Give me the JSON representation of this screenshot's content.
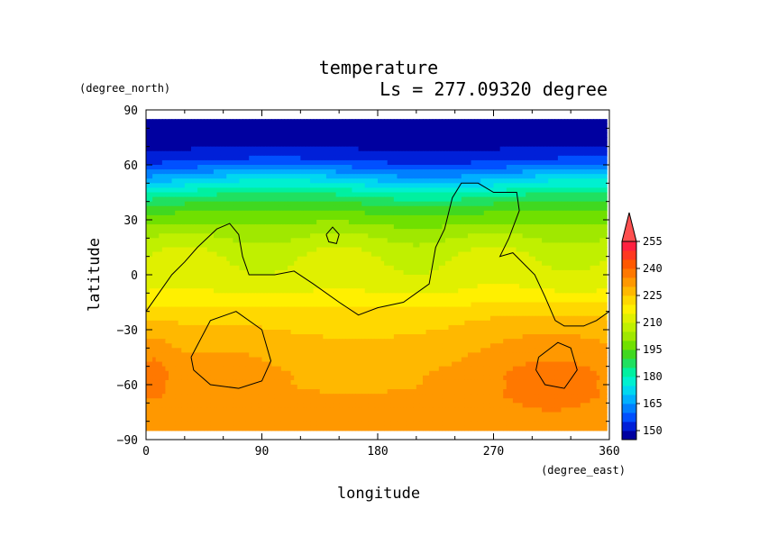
{
  "chart_data": {
    "type": "heatmap",
    "title": "temperature",
    "subtitle": "Ls = 277.09320 degree",
    "xlabel": "longitude",
    "ylabel": "latitude",
    "xunit": "(degree_east)",
    "yunit": "(degree_north)",
    "xlim": [
      0,
      360
    ],
    "ylim": [
      -90,
      90
    ],
    "x_ticks": [
      "0",
      "90",
      "180",
      "270",
      "360"
    ],
    "y_ticks": [
      "90",
      "60",
      "30",
      "0",
      "−30",
      "−60",
      "−90"
    ],
    "x_tick_values": [
      0,
      90,
      180,
      270,
      360
    ],
    "y_tick_values": [
      90,
      60,
      30,
      0,
      -30,
      -60,
      -90
    ],
    "lat_range": [
      -85,
      85
    ],
    "colorbar": {
      "levels": [
        145,
        150,
        155,
        160,
        165,
        170,
        175,
        180,
        185,
        190,
        195,
        200,
        205,
        210,
        215,
        220,
        225,
        230,
        235,
        240,
        245,
        250,
        255,
        260
      ],
      "colors": [
        "#0000a0",
        "#0020d8",
        "#0050ff",
        "#0080ff",
        "#00b0ff",
        "#00d8f0",
        "#00f0d0",
        "#00f0a0",
        "#20e060",
        "#40d820",
        "#70e000",
        "#a0e800",
        "#c0f000",
        "#e0f000",
        "#fff000",
        "#ffd800",
        "#ffb800",
        "#ff9800",
        "#ff7800",
        "#ff5800",
        "#ff3820",
        "#ff2040",
        "#ff5050"
      ],
      "tick_labels": [
        "150",
        "165",
        "180",
        "195",
        "210",
        "225",
        "240",
        "255"
      ],
      "tick_values": [
        150,
        165,
        180,
        195,
        210,
        225,
        240,
        255
      ]
    },
    "field": {
      "lats": [
        85,
        75,
        65,
        60,
        55,
        50,
        45,
        40,
        35,
        30,
        25,
        20,
        15,
        10,
        5,
        0,
        -5,
        -10,
        -15,
        -20,
        -25,
        -30,
        -35,
        -40,
        -45,
        -50,
        -55,
        -60,
        -65,
        -70,
        -75,
        -80,
        -85
      ],
      "zonal_mean": [
        146,
        147,
        152,
        158,
        166,
        174,
        182,
        189,
        194,
        198,
        202,
        205,
        208,
        210,
        211,
        212,
        213,
        215,
        218,
        221,
        223,
        224,
        225,
        226,
        227,
        228,
        229,
        229,
        230,
        230,
        230,
        230,
        230
      ],
      "warm_regions": [
        {
          "lon": 315,
          "lat": -52,
          "dlon": 70,
          "dlat": 32,
          "amp": 8
        },
        {
          "lon": 60,
          "lat": -48,
          "dlon": 50,
          "dlat": 22,
          "amp": 4
        },
        {
          "lon": 5,
          "lat": -52,
          "dlon": 18,
          "dlat": 25,
          "amp": 7
        }
      ]
    },
    "contours": [
      {
        "name": "continent-north",
        "points": [
          [
            0,
            -20
          ],
          [
            10,
            -10
          ],
          [
            20,
            0
          ],
          [
            30,
            7
          ],
          [
            40,
            15
          ],
          [
            55,
            25
          ],
          [
            65,
            28
          ],
          [
            72,
            22
          ],
          [
            75,
            10
          ],
          [
            80,
            0
          ],
          [
            100,
            0
          ],
          [
            115,
            2
          ],
          [
            130,
            -5
          ],
          [
            150,
            -15
          ],
          [
            165,
            -22
          ],
          [
            180,
            -18
          ],
          [
            200,
            -15
          ],
          [
            220,
            -5
          ],
          [
            225,
            15
          ],
          [
            232,
            25
          ],
          [
            238,
            42
          ],
          [
            245,
            50
          ],
          [
            258,
            50
          ],
          [
            270,
            45
          ],
          [
            288,
            45
          ],
          [
            290,
            35
          ],
          [
            282,
            20
          ],
          [
            275,
            10
          ],
          [
            285,
            12
          ],
          [
            302,
            0
          ],
          [
            310,
            -12
          ],
          [
            318,
            -25
          ],
          [
            325,
            -28
          ],
          [
            340,
            -28
          ],
          [
            350,
            -25
          ],
          [
            360,
            -20
          ]
        ]
      },
      {
        "name": "continent-north-island",
        "points": [
          [
            140,
            22
          ],
          [
            145,
            26
          ],
          [
            150,
            22
          ],
          [
            148,
            17
          ],
          [
            142,
            18
          ],
          [
            140,
            22
          ]
        ]
      },
      {
        "name": "region-west-south",
        "points": [
          [
            35,
            -45
          ],
          [
            50,
            -25
          ],
          [
            70,
            -20
          ],
          [
            90,
            -30
          ],
          [
            97,
            -47
          ],
          [
            90,
            -58
          ],
          [
            72,
            -62
          ],
          [
            50,
            -60
          ],
          [
            37,
            -52
          ],
          [
            35,
            -45
          ]
        ]
      },
      {
        "name": "region-east-south",
        "points": [
          [
            305,
            -45
          ],
          [
            320,
            -37
          ],
          [
            330,
            -40
          ],
          [
            335,
            -52
          ],
          [
            325,
            -62
          ],
          [
            310,
            -60
          ],
          [
            303,
            -52
          ],
          [
            305,
            -45
          ]
        ]
      }
    ]
  }
}
